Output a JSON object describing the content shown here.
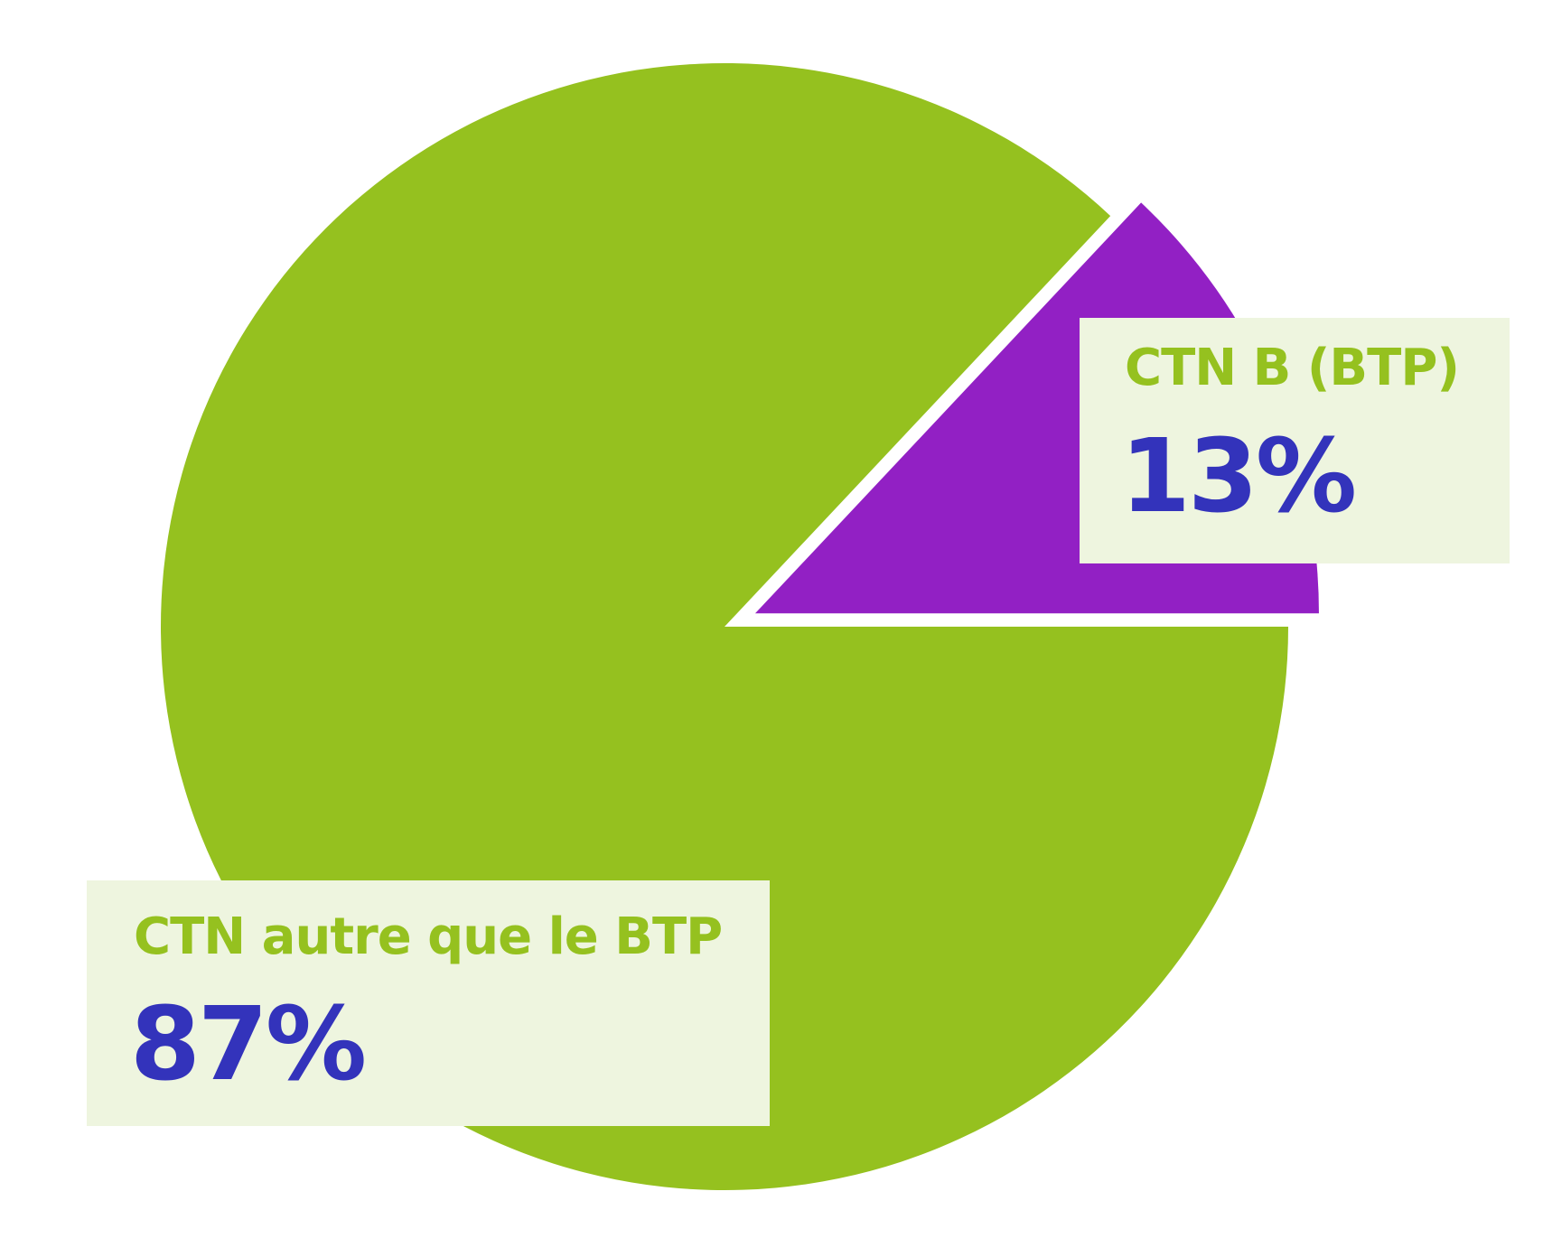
{
  "chart_data": {
    "type": "pie",
    "slices": [
      {
        "label": "CTN B (BTP)",
        "value_label": "13%",
        "value": 13,
        "color": "#9220c4",
        "exploded": true
      },
      {
        "label": "CTN autre que le BTP",
        "value_label": "87%",
        "value": 87,
        "color": "#95c11f",
        "exploded": false
      }
    ],
    "label_name_color": "#95c11f",
    "label_value_color": "#3333bb",
    "label_box_color": "#eef5df",
    "start_angle_deg": 0,
    "direction": "counterclockwise",
    "legend": "none",
    "grid": false
  }
}
